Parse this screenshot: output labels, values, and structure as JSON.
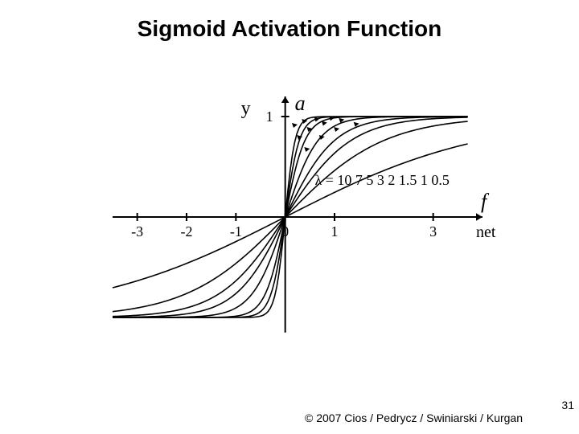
{
  "title": "Sigmoid Activation Function",
  "title_fontsize": 28,
  "chart": {
    "type": "line",
    "background_color": "#ffffff",
    "axis_color": "#000000",
    "curve_color": "#000000",
    "line_width": 2,
    "xlim": [
      -3.5,
      4.0
    ],
    "ylim": [
      -1.2,
      1.2
    ],
    "xticks": [
      -3,
      -2,
      -1,
      0,
      1,
      3
    ],
    "y_one_tick": 1,
    "y_axis_label_top": "a",
    "y_axis_label_left": "y",
    "x_axis_label_right": "f",
    "x_axis_sublabel": "net",
    "lambda_text": "λ = 10 7 5 3 2 1.5 1 0.5",
    "lambdas": [
      10,
      7,
      5,
      3,
      2,
      1.5,
      1,
      0.5
    ],
    "label_fontsize": 18,
    "axis_label_fontsize": 26,
    "lambda_fontsize": 18,
    "arrow_head": 8
  },
  "footer": {
    "copyright": "© 2007 Cios / Pedrycz / Swiniarski / Kurgan",
    "copyright_fontsize": 14,
    "page_number": "31",
    "page_number_fontsize": 14
  }
}
